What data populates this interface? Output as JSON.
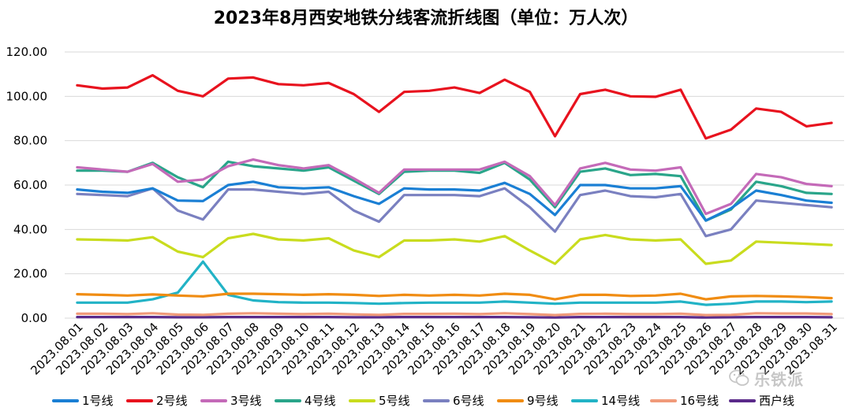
{
  "chart_data": {
    "type": "line",
    "title": "2023年8月西安地铁分线客流折线图（单位：万人次）",
    "xlabel": "",
    "ylabel": "",
    "ylim": [
      0,
      120
    ],
    "yticks": [
      0,
      20,
      40,
      60,
      80,
      100,
      120
    ],
    "ytick_labels": [
      "0.00",
      "20.00",
      "40.00",
      "60.00",
      "80.00",
      "100.00",
      "120.00"
    ],
    "grid": true,
    "legend_position": "bottom",
    "categories": [
      "2023.08.01",
      "2023.08.02",
      "2023.08.03",
      "2023.08.04",
      "2023.08.05",
      "2023.08.06",
      "2023.08.07",
      "2023.08.08",
      "2023.08.09",
      "2023.08.10",
      "2023.08.11",
      "2023.08.12",
      "2023.08.13",
      "2023.08.14",
      "2023.08.15",
      "2023.08.16",
      "2023.08.17",
      "2023.08.18",
      "2023.08.19",
      "2023.08.20",
      "2023.08.21",
      "2023.08.22",
      "2023.08.23",
      "2023.08.24",
      "2023.08.25",
      "2023.08.26",
      "2023.08.27",
      "2023.08.28",
      "2023.08.29",
      "2023.08.30",
      "2023.08.31"
    ],
    "series": [
      {
        "name": "1号线",
        "color": "#1a7fd4",
        "values": [
          58,
          57,
          56.5,
          58.5,
          53,
          52.8,
          60,
          61.5,
          59,
          58.5,
          59,
          55,
          51.5,
          58.5,
          58,
          58,
          57.5,
          61,
          56,
          46.5,
          60,
          60,
          58.5,
          58.5,
          59.5,
          44,
          49.5,
          57.5,
          55.5,
          53,
          52
        ]
      },
      {
        "name": "2号线",
        "color": "#e8121e",
        "values": [
          105,
          103.5,
          104,
          109.5,
          102.5,
          100,
          108,
          108.5,
          105.5,
          105,
          106,
          101,
          93,
          102,
          102.5,
          104,
          101.5,
          107.5,
          102,
          82,
          101,
          103,
          100,
          99.8,
          103,
          81,
          85,
          94.5,
          93,
          86.5,
          88
        ]
      },
      {
        "name": "3号线",
        "color": "#c46ab8",
        "values": [
          68,
          67,
          66,
          69.5,
          61.5,
          62.5,
          68.5,
          71.5,
          69,
          67.5,
          69,
          63,
          56.5,
          67,
          67,
          67,
          67,
          70.5,
          64,
          51,
          67.5,
          70,
          67,
          66.5,
          68,
          47,
          51.5,
          65,
          63.5,
          60.5,
          59.5
        ]
      },
      {
        "name": "4号线",
        "color": "#2aa58a",
        "values": [
          66.5,
          66.5,
          66,
          70,
          63.5,
          59,
          70.5,
          68.5,
          67.5,
          66.5,
          68,
          62,
          56,
          66,
          66.5,
          66.5,
          65.5,
          70,
          62.5,
          50,
          66,
          67.5,
          64.5,
          65,
          64,
          44,
          49,
          61.5,
          59.5,
          56.5,
          56
        ]
      },
      {
        "name": "5号线",
        "color": "#c9dc1e",
        "values": [
          35.5,
          35.3,
          35,
          36.5,
          30,
          27.5,
          36,
          38,
          35.5,
          35,
          36,
          30.5,
          27.5,
          35,
          35,
          35.5,
          34.5,
          37,
          30.5,
          24.5,
          35.5,
          37.5,
          35.5,
          35,
          35.5,
          24.5,
          26,
          34.5,
          34,
          33.5,
          33
        ]
      },
      {
        "name": "6号线",
        "color": "#7a80c0",
        "values": [
          56,
          55.5,
          55,
          58.5,
          48.5,
          44.5,
          58,
          58,
          57,
          56,
          57,
          48.5,
          43.5,
          55.5,
          55.5,
          55.5,
          55,
          58.5,
          50,
          39,
          55.5,
          57.5,
          55,
          54.5,
          56,
          37,
          40,
          53,
          52,
          51,
          50
        ]
      },
      {
        "name": "9号线",
        "color": "#f08c12",
        "values": [
          10.8,
          10.5,
          10.2,
          10.7,
          10.2,
          9.8,
          11,
          11,
          10.8,
          10.5,
          10.8,
          10.5,
          10,
          10.5,
          10.2,
          10.5,
          10.2,
          11,
          10.5,
          8.5,
          10.5,
          10.5,
          10,
          10.2,
          11,
          8.5,
          9.8,
          10,
          9.8,
          9.5,
          9
        ]
      },
      {
        "name": "14号线",
        "color": "#22b3c6",
        "values": [
          7,
          7,
          7,
          8.5,
          11.5,
          25.5,
          10.5,
          8,
          7.2,
          7,
          7,
          6.8,
          6.5,
          6.8,
          7,
          7,
          7,
          7.5,
          7,
          6.5,
          7,
          7,
          7,
          7,
          7.5,
          6,
          6.5,
          7.5,
          7.5,
          7.2,
          7.5
        ]
      },
      {
        "name": "16号线",
        "color": "#f09a7a",
        "values": [
          2,
          2,
          1.8,
          2.2,
          1.6,
          1.5,
          2,
          2.2,
          2,
          1.8,
          2,
          1.7,
          1.5,
          1.9,
          1.9,
          2,
          1.8,
          2.2,
          1.8,
          1.4,
          1.9,
          2,
          1.8,
          1.8,
          2,
          1.4,
          1.5,
          2.2,
          2.1,
          2.1,
          1.8
        ]
      },
      {
        "name": "西户线",
        "color": "#5a2a8a",
        "values": [
          0.5,
          0.5,
          0.5,
          0.5,
          0.4,
          0.4,
          0.5,
          0.5,
          0.5,
          0.5,
          0.5,
          0.4,
          0.4,
          0.5,
          0.5,
          0.5,
          0.5,
          0.5,
          0.4,
          0.3,
          0.5,
          0.5,
          0.5,
          0.5,
          0.5,
          0.3,
          0.4,
          0.5,
          0.5,
          0.5,
          0.4
        ]
      }
    ]
  },
  "watermark": {
    "label": "乐铁派"
  }
}
